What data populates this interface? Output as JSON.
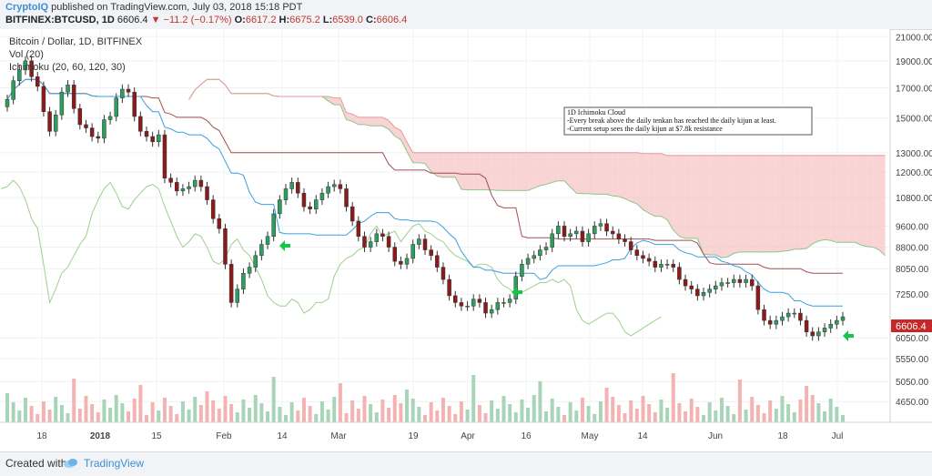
{
  "header": {
    "user": "CryptoIQ",
    "published_text": "published on TradingView.com, July 03, 2018 15:18 PDT",
    "symbol": "BITFINEX:BTCUSD, 1D",
    "last": "6606.4",
    "change": "−11.2 (−0.17%)",
    "o_label": "O:",
    "o_value": "6617.2",
    "h_label": "H:",
    "h_value": "6675.2",
    "l_label": "L:",
    "l_value": "6539.0",
    "c_label": "C:",
    "c_value": "6606.4"
  },
  "footer": {
    "created_with": "Created with",
    "brand": "TradingView"
  },
  "legend": {
    "title": "Bitcoin / Dollar, 1D, BITFINEX",
    "vol": "Vol (20)",
    "ichimoku": "Ichimoku (20, 60, 120, 30)"
  },
  "note": {
    "line1": "1D Ichimoku Cloud",
    "line2": "-Every break above the daily tenkan has reached the daily kijun at least.",
    "line3": "-Current setup sees the daily kijun at $7.8k resistance"
  },
  "price_tag": "6606.4",
  "colors": {
    "up": "#2e9e5e",
    "down": "#8b1a1a",
    "tenkan": "#3aa0df",
    "kijun": "#a05050",
    "chikou": "#9fcf8f",
    "cloud_bull": "#b9ddb4",
    "cloud_bear": "#f6c6c6",
    "arrow": "#1ac44a",
    "vol_up": "#a8d5b8",
    "vol_down": "#f3b3b3"
  },
  "chart_data": {
    "type": "candlestick",
    "title": "Bitcoin / Dollar, 1D, BITFINEX",
    "x_ticks": [
      "18",
      "2018",
      "15",
      "Feb",
      "14",
      "Mar",
      "19",
      "Apr",
      "16",
      "May",
      "14",
      "Jun",
      "18",
      "Jul"
    ],
    "y_ticks": [
      21000,
      19000,
      17000,
      15000,
      13000,
      12000,
      10800,
      9600,
      8800,
      8050,
      7250,
      6050,
      5550,
      5050,
      4650
    ],
    "y_scale": "log",
    "y_range": [
      4300,
      21500
    ],
    "last_price": 6606.4,
    "close": [
      16200,
      17500,
      18300,
      19000,
      17800,
      17100,
      15400,
      14200,
      15200,
      16700,
      17200,
      15600,
      14600,
      14400,
      13900,
      13800,
      14900,
      15100,
      16300,
      16900,
      16700,
      15100,
      14200,
      13900,
      13600,
      14000,
      11700,
      11500,
      11100,
      11200,
      11300,
      11600,
      11300,
      10700,
      9900,
      9500,
      8200,
      7000,
      7400,
      7900,
      8100,
      8500,
      8900,
      9200,
      10100,
      10700,
      11200,
      11500,
      11000,
      10400,
      10300,
      10700,
      11000,
      11300,
      11400,
      11200,
      10400,
      9800,
      9200,
      8800,
      9000,
      9300,
      9200,
      8800,
      8300,
      8200,
      8400,
      8900,
      9100,
      8700,
      8500,
      8100,
      7700,
      7200,
      7000,
      6900,
      6900,
      7100,
      7000,
      6700,
      6800,
      7000,
      7000,
      7100,
      7800,
      8200,
      8400,
      8500,
      8700,
      8800,
      9300,
      9600,
      9200,
      9300,
      9400,
      9000,
      9300,
      9600,
      9700,
      9400,
      9300,
      9100,
      9000,
      8700,
      8500,
      8400,
      8300,
      8100,
      8200,
      8200,
      8100,
      7700,
      7500,
      7400,
      7200,
      7300,
      7400,
      7500,
      7600,
      7600,
      7700,
      7600,
      7700,
      7500,
      6800,
      6500,
      6400,
      6500,
      6600,
      6700,
      6700,
      6500,
      6200,
      6100,
      6200,
      6300,
      6400,
      6500,
      6600
    ],
    "tenkan_kijun_note": "Tenkan (blue), Kijun (brown), Chikou (green) lines with Ichimoku cloud",
    "volume_series_name": "Vol (20)"
  }
}
